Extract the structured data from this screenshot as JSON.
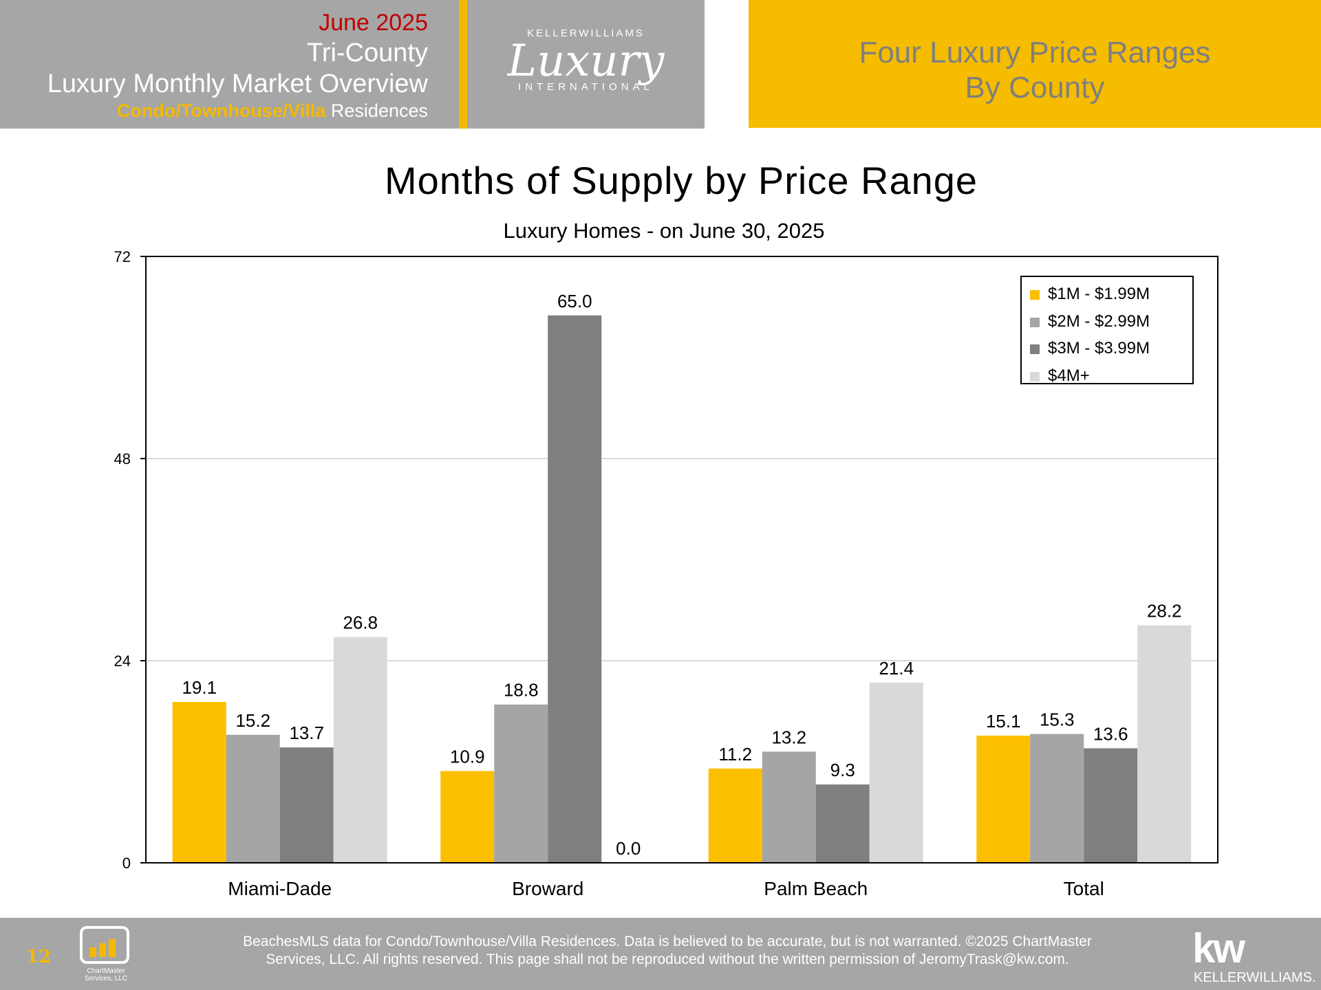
{
  "header": {
    "date": "June 2025",
    "region": "Tri-County",
    "report_title": "Luxury Monthly Market Overview",
    "property_type_highlight": "Condo/Townhouse/Villa",
    "property_type_suffix": "Residences",
    "logo_top": "KELLERWILLIAMS",
    "logo_main": "Luxury",
    "logo_bottom": "INTERNATIONAL",
    "section_title_line1": "Four Luxury Price Ranges",
    "section_title_line2": "By County"
  },
  "colors": {
    "accent_yellow": "#f5bc00",
    "header_gray": "#a6a6a6",
    "date_red": "#c00000"
  },
  "chart_data": {
    "type": "bar",
    "title": "Months of Supply by Price Range",
    "subtitle": "Luxury Homes - on June 30, 2025",
    "categories": [
      "Miami-Dade",
      "Broward",
      "Palm Beach",
      "Total"
    ],
    "series": [
      {
        "name": "$1M - $1.99M",
        "color": "#fcbf00",
        "values": [
          19.1,
          10.9,
          11.2,
          15.1
        ]
      },
      {
        "name": "$2M - $2.99M",
        "color": "#a5a5a5",
        "values": [
          15.2,
          18.8,
          13.2,
          15.3
        ]
      },
      {
        "name": "$3M - $3.99M",
        "color": "#7f7f7f",
        "values": [
          13.7,
          65.0,
          9.3,
          13.6
        ]
      },
      {
        "name": "$4M+",
        "color": "#d9d9d9",
        "values": [
          26.8,
          0.0,
          21.4,
          28.2
        ]
      }
    ],
    "yticks": [
      0,
      24,
      48,
      72
    ],
    "ylim": [
      0,
      72
    ],
    "grid": true,
    "legend_position": "top-right",
    "value_format": "0.0"
  },
  "footer": {
    "page_number": "12",
    "chartmaster_name": "ChartMaster",
    "chartmaster_sub": "Services, LLC",
    "disclaimer_line1": "BeachesMLS data for Condo/Townhouse/Villa Residences.  Data is believed to be accurate, but is not warranted.   ©2025  ChartMaster",
    "disclaimer_line2": "Services, LLC.  All rights reserved. This page shall not be reproduced without the written permission of JeromyTrask@kw.com.",
    "kw_logo": "kw",
    "kw_name": "KELLERWILLIAMS."
  }
}
